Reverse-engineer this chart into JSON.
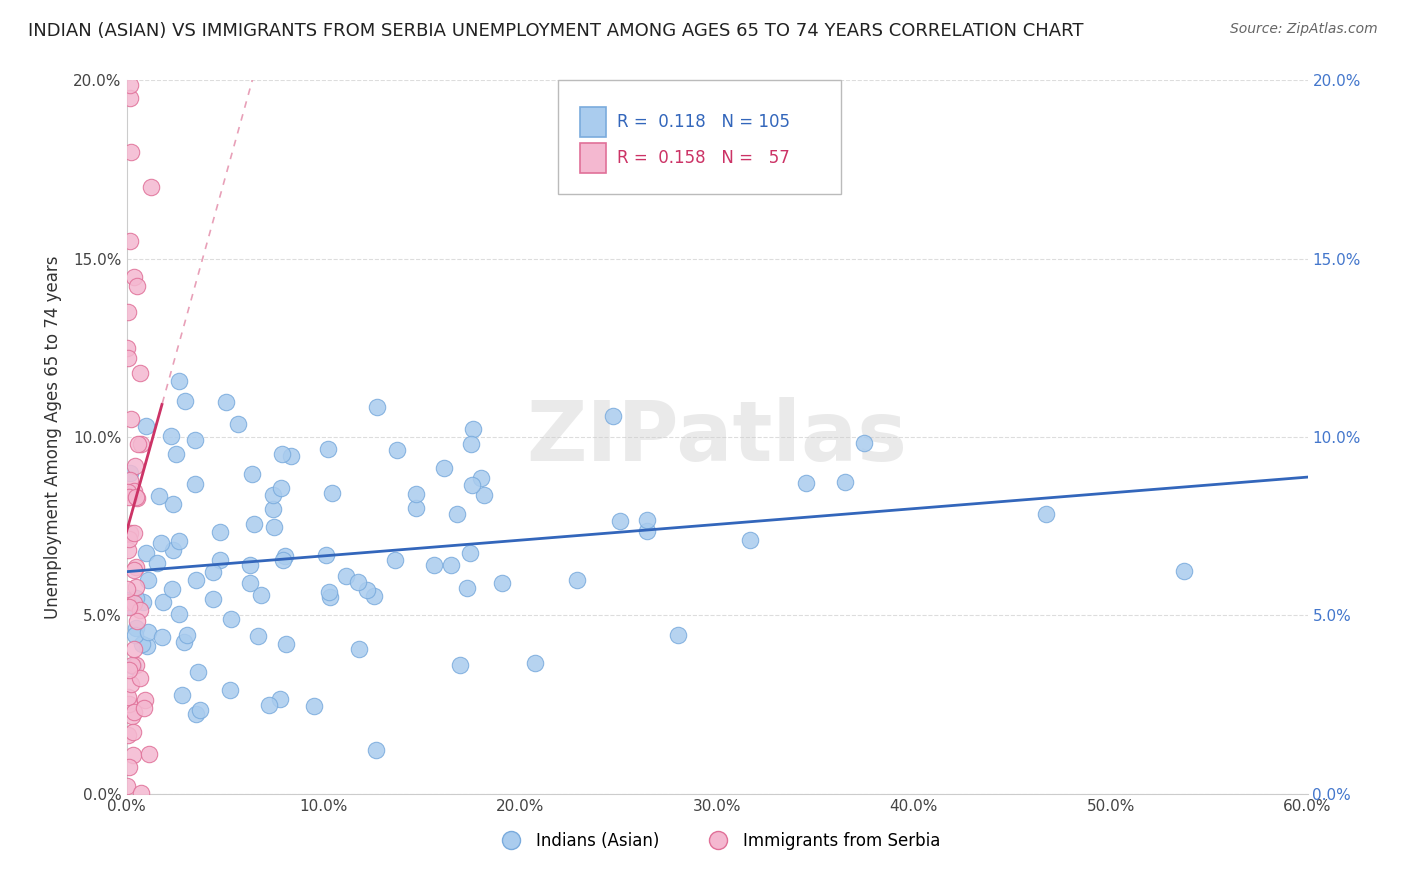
{
  "title": "INDIAN (ASIAN) VS IMMIGRANTS FROM SERBIA UNEMPLOYMENT AMONG AGES 65 TO 74 YEARS CORRELATION CHART",
  "source": "Source: ZipAtlas.com",
  "ylabel": "Unemployment Among Ages 65 to 74 years",
  "xlim": [
    0.0,
    0.6
  ],
  "ylim": [
    0.0,
    0.2
  ],
  "xticks": [
    0.0,
    0.1,
    0.2,
    0.3,
    0.4,
    0.5,
    0.6
  ],
  "xtick_labels": [
    "0.0%",
    "10.0%",
    "20.0%",
    "30.0%",
    "40.0%",
    "50.0%",
    "60.0%"
  ],
  "yticks": [
    0.0,
    0.05,
    0.1,
    0.15,
    0.2
  ],
  "ytick_labels": [
    "0.0%",
    "5.0%",
    "10.0%",
    "15.0%",
    "20.0%"
  ],
  "blue_color": "#aaccee",
  "blue_edge_color": "#7aabdd",
  "pink_color": "#f4b8d0",
  "pink_edge_color": "#e07098",
  "blue_line_color": "#3366bb",
  "pink_line_color": "#cc3366",
  "pink_dash_color": "#e8a0b8",
  "legend_blue_r": "R =  0.118",
  "legend_blue_n": "N = 105",
  "legend_pink_r": "R =  0.158",
  "legend_pink_n": "N =   57",
  "legend_label_blue": "Indians (Asian)",
  "legend_label_pink": "Immigrants from Serbia",
  "blue_R": 0.118,
  "blue_N": 105,
  "pink_R": 0.158,
  "pink_N": 57,
  "watermark": "ZIPatlas",
  "background_color": "#ffffff",
  "grid_color": "#dddddd",
  "title_fontsize": 13,
  "tick_fontsize": 11,
  "legend_fontsize": 12,
  "right_tick_color": "#4477cc"
}
